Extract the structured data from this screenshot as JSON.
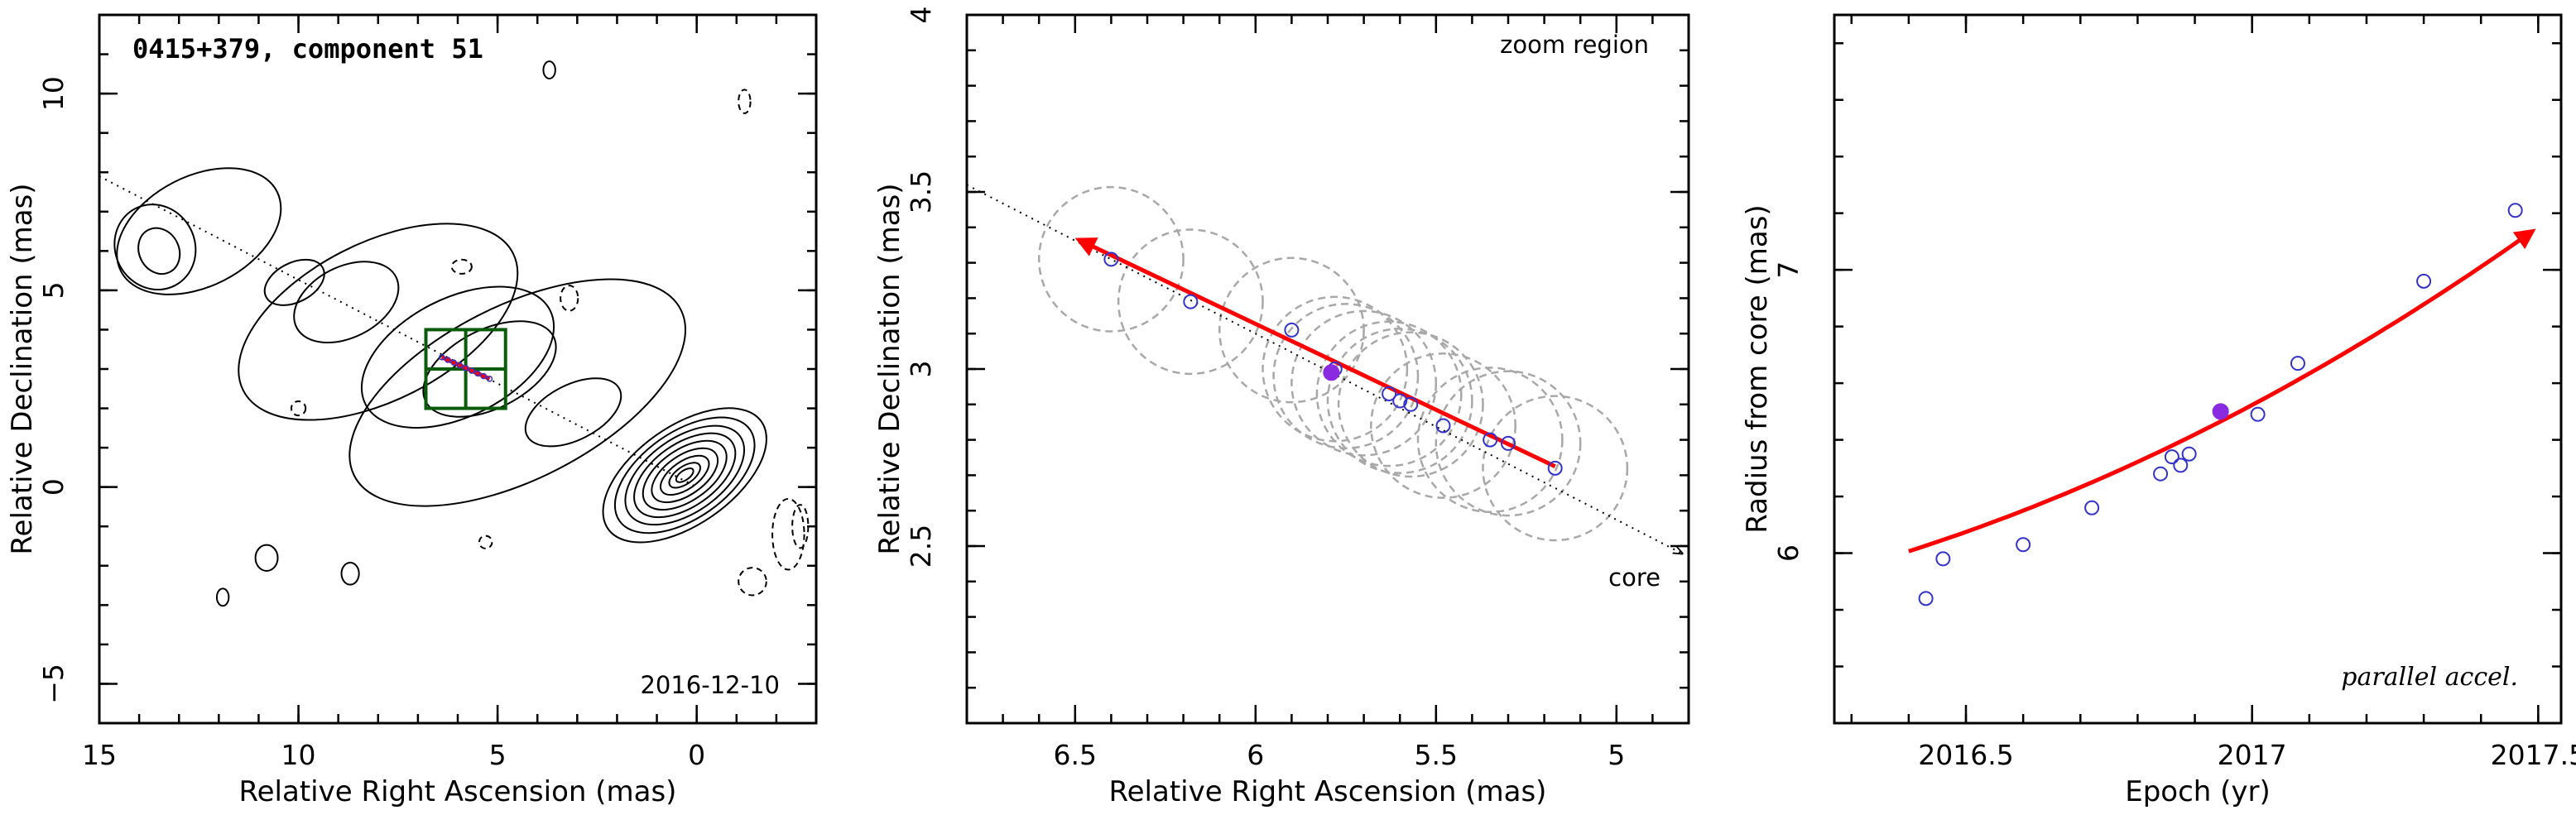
{
  "chart_data": [
    {
      "type": "scatter",
      "panel": "vlba-map",
      "title": "0415+379, component 51",
      "date_label": "2016-12-10",
      "xlabel": "Relative Right Ascension (mas)",
      "ylabel": "Relative Declination (mas)",
      "xlim": [
        15,
        -3
      ],
      "ylim": [
        -6,
        12
      ],
      "xticks": [
        15,
        10,
        5,
        0
      ],
      "xtick_labels": [
        "15",
        "10",
        "5",
        "0"
      ],
      "yticks": [
        -5,
        0,
        5,
        10
      ],
      "ytick_labels": [
        "−5",
        "0",
        "5",
        "10"
      ],
      "contours": {
        "core": {
          "x": 0.3,
          "y": 0.3
        },
        "levels": [
          {
            "hw": 0.25,
            "hh": 0.12
          },
          {
            "hw": 0.45,
            "hh": 0.22
          },
          {
            "hw": 0.7,
            "hh": 0.35
          },
          {
            "hw": 0.95,
            "hh": 0.5
          },
          {
            "hw": 1.2,
            "hh": 0.65
          },
          {
            "hw": 1.45,
            "hh": 0.8
          },
          {
            "hw": 1.7,
            "hh": 0.95
          },
          {
            "hw": 2.0,
            "hh": 1.1
          },
          {
            "hw": 2.35,
            "hh": 1.25
          }
        ],
        "jet_knots": [
          {
            "x": 3.1,
            "y": 1.9,
            "hw": 1.3,
            "hh": 0.7
          },
          {
            "x": 5.2,
            "y": 3.0,
            "hw": 1.8,
            "hh": 1.0
          },
          {
            "x": 6.0,
            "y": 3.3,
            "hw": 2.6,
            "hh": 1.5
          },
          {
            "x": 8.8,
            "y": 4.7,
            "hw": 1.4,
            "hh": 0.9
          },
          {
            "x": 10.1,
            "y": 5.2,
            "hw": 0.8,
            "hh": 0.5
          },
          {
            "x": 13.5,
            "y": 6.0,
            "hw": 0.5,
            "hh": 0.6
          },
          {
            "x": 13.6,
            "y": 6.1,
            "hw": 1.0,
            "hh": 1.1
          },
          {
            "x": 12.5,
            "y": 6.5,
            "hw": 2.2,
            "hh": 1.4
          },
          {
            "x": 8.0,
            "y": 4.2,
            "hw": 3.8,
            "hh": 2.0
          },
          {
            "x": 4.5,
            "y": 2.4,
            "hw": 4.6,
            "hh": 2.2
          }
        ],
        "isolated_solid": [
          {
            "x": 3.7,
            "y": 10.6,
            "hw": 0.15,
            "hh": 0.22
          },
          {
            "x": 10.8,
            "y": -1.8,
            "hw": 0.28,
            "hh": 0.33
          },
          {
            "x": 8.7,
            "y": -2.2,
            "hw": 0.22,
            "hh": 0.28
          },
          {
            "x": 11.9,
            "y": -2.8,
            "hw": 0.15,
            "hh": 0.22
          }
        ],
        "isolated_dashed": [
          {
            "x": 5.9,
            "y": 5.6,
            "hw": 0.25,
            "hh": 0.18
          },
          {
            "x": 3.2,
            "y": 4.8,
            "hw": 0.22,
            "hh": 0.32
          },
          {
            "x": 10.0,
            "y": 2.0,
            "hw": 0.18,
            "hh": 0.18
          },
          {
            "x": 5.3,
            "y": -1.4,
            "hw": 0.16,
            "hh": 0.16
          },
          {
            "x": -1.2,
            "y": 9.8,
            "hw": 0.15,
            "hh": 0.3
          },
          {
            "x": -1.4,
            "y": -2.4,
            "hw": 0.35,
            "hh": 0.35
          },
          {
            "x": -2.3,
            "y": -1.2,
            "hw": 0.4,
            "hh": 0.9
          },
          {
            "x": -2.6,
            "y": -1.0,
            "hw": 0.2,
            "hh": 0.55
          }
        ]
      },
      "jet_axis": {
        "x1": 15,
        "y1": 7.9,
        "x2": 0,
        "y2": 0
      },
      "zoom_box": {
        "x1": 4.8,
        "x2": 6.8,
        "y1": 2.0,
        "y2": 4.0
      },
      "track": {
        "x1": 6.4,
        "y1": 3.3,
        "x2": 5.2,
        "y2": 2.75
      },
      "colors": {
        "contour": "#000000",
        "box": "#0a5c0a",
        "track": "#ff0000",
        "points": "#3333cc"
      }
    },
    {
      "type": "scatter",
      "panel": "zoom-region",
      "title": "zoom region",
      "core_label": "core",
      "xlabel": "Relative Right Ascension (mas)",
      "ylabel": "Relative Declination (mas)",
      "xlim": [
        6.8,
        4.8
      ],
      "ylim": [
        2.0,
        4.0
      ],
      "xticks": [
        6.5,
        6,
        5.5,
        5
      ],
      "xtick_labels": [
        "6.5",
        "6",
        "5.5",
        "5"
      ],
      "yticks": [
        2.5,
        3,
        3.5,
        4
      ],
      "ytick_labels": [
        "2.5",
        "3",
        "3.5",
        "4"
      ],
      "points": [
        {
          "x": 6.4,
          "y": 3.31
        },
        {
          "x": 6.18,
          "y": 3.19
        },
        {
          "x": 5.9,
          "y": 3.11
        },
        {
          "x": 5.78,
          "y": 3.0
        },
        {
          "x": 5.63,
          "y": 2.93
        },
        {
          "x": 5.6,
          "y": 2.91
        },
        {
          "x": 5.57,
          "y": 2.9
        },
        {
          "x": 5.48,
          "y": 2.84
        },
        {
          "x": 5.35,
          "y": 2.8
        },
        {
          "x": 5.3,
          "y": 2.79
        },
        {
          "x": 5.17,
          "y": 2.72
        }
      ],
      "highlight_point": {
        "x": 5.79,
        "y": 2.99
      },
      "uncertainty_circles": [
        {
          "x": 6.4,
          "y": 3.31,
          "r": 0.2
        },
        {
          "x": 6.18,
          "y": 3.19,
          "r": 0.2
        },
        {
          "x": 5.9,
          "y": 3.11,
          "r": 0.2
        },
        {
          "x": 5.78,
          "y": 3.0,
          "r": 0.2
        },
        {
          "x": 5.75,
          "y": 2.98,
          "r": 0.2
        },
        {
          "x": 5.7,
          "y": 2.96,
          "r": 0.2
        },
        {
          "x": 5.63,
          "y": 2.93,
          "r": 0.2
        },
        {
          "x": 5.6,
          "y": 2.91,
          "r": 0.2
        },
        {
          "x": 5.57,
          "y": 2.9,
          "r": 0.2
        },
        {
          "x": 5.48,
          "y": 2.84,
          "r": 0.2
        },
        {
          "x": 5.35,
          "y": 2.8,
          "r": 0.2
        },
        {
          "x": 5.3,
          "y": 2.79,
          "r": 0.2
        },
        {
          "x": 5.17,
          "y": 2.72,
          "r": 0.2
        }
      ],
      "fit_arrow": {
        "x1": 5.17,
        "y1": 2.725,
        "x2": 6.49,
        "y2": 3.365
      },
      "jet_axis": {
        "x1": 6.8,
        "y1": 3.52,
        "x2": 4.82,
        "y2": 2.48
      },
      "colors": {
        "points": "#3333cc",
        "highlight": "#8a2be2",
        "circles": "#a8a8a8",
        "fit": "#ff0000"
      }
    },
    {
      "type": "scatter",
      "panel": "radius-vs-epoch",
      "annotation": "parallel accel.",
      "xlabel": "Epoch (yr)",
      "ylabel": "Radius from core (mas)",
      "xlim": [
        2016.27,
        2017.54
      ],
      "ylim": [
        5.4,
        7.9
      ],
      "xticks": [
        2016.5,
        2017,
        2017.5
      ],
      "xtick_labels": [
        "2016.5",
        "2017",
        "2017.5"
      ],
      "yticks": [
        6,
        7
      ],
      "ytick_labels": [
        "6",
        "7"
      ],
      "points": [
        {
          "x": 2016.43,
          "y": 5.84
        },
        {
          "x": 2016.46,
          "y": 5.98
        },
        {
          "x": 2016.6,
          "y": 6.03
        },
        {
          "x": 2016.72,
          "y": 6.16
        },
        {
          "x": 2016.84,
          "y": 6.28
        },
        {
          "x": 2016.86,
          "y": 6.34
        },
        {
          "x": 2016.875,
          "y": 6.31
        },
        {
          "x": 2016.89,
          "y": 6.35
        },
        {
          "x": 2017.01,
          "y": 6.49
        },
        {
          "x": 2017.08,
          "y": 6.67
        },
        {
          "x": 2017.3,
          "y": 6.96
        },
        {
          "x": 2017.46,
          "y": 7.21
        }
      ],
      "highlight_point": {
        "x": 2016.945,
        "y": 6.5
      },
      "fit": {
        "x0": 2016.4,
        "x1": 2017.49,
        "c0": 6.47,
        "c1": 1.04,
        "c2": 0.36,
        "ref": 2016.95
      },
      "colors": {
        "points": "#3333cc",
        "highlight": "#8a2be2",
        "fit": "#ff0000"
      }
    }
  ]
}
